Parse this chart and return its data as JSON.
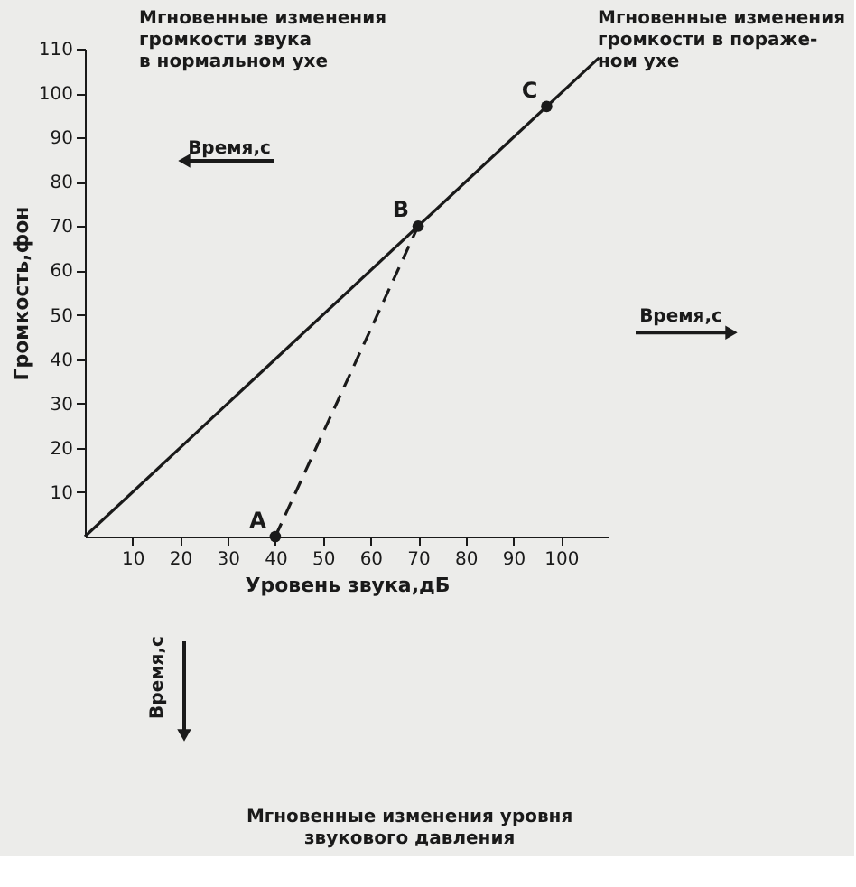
{
  "chart_data": {
    "type": "line",
    "xlabel": "Уровень звука,дБ",
    "ylabel": "Громкость,фон",
    "xlim": [
      0,
      110
    ],
    "ylim": [
      0,
      110
    ],
    "xticks": [
      10,
      20,
      30,
      40,
      50,
      60,
      70,
      80,
      90,
      100
    ],
    "yticks": [
      10,
      20,
      30,
      40,
      50,
      60,
      70,
      80,
      90,
      100,
      110
    ],
    "grid": false,
    "series": [
      {
        "color": "#1a1a1a",
        "x": [
          0,
          108
        ],
        "values": [
          0,
          108
        ],
        "line_style": "solid"
      },
      {
        "color": "#1a1a1a",
        "x": [
          40,
          70
        ],
        "values": [
          0,
          70
        ],
        "line_style": "dashed"
      },
      {
        "type": "scatter",
        "color": "#1a1a1a",
        "x": [
          40,
          70,
          97
        ],
        "values": [
          0,
          70,
          97
        ],
        "marker": "circle"
      }
    ],
    "annotations": [
      "Мгновенные изменения\nгромкости звука\nв нормальном ухе",
      "Время,с",
      "Мгновенные изменения\nгромкости в пораже-\nном ухе",
      "Время,с",
      "Время,с",
      "Мгновенные изменения уровня\nзвукового давления",
      {
        "text": "A",
        "x": 40,
        "y": 0
      },
      {
        "text": "B",
        "x": 70,
        "y": 70
      },
      {
        "text": "C",
        "x": 97,
        "y": 97
      }
    ]
  }
}
